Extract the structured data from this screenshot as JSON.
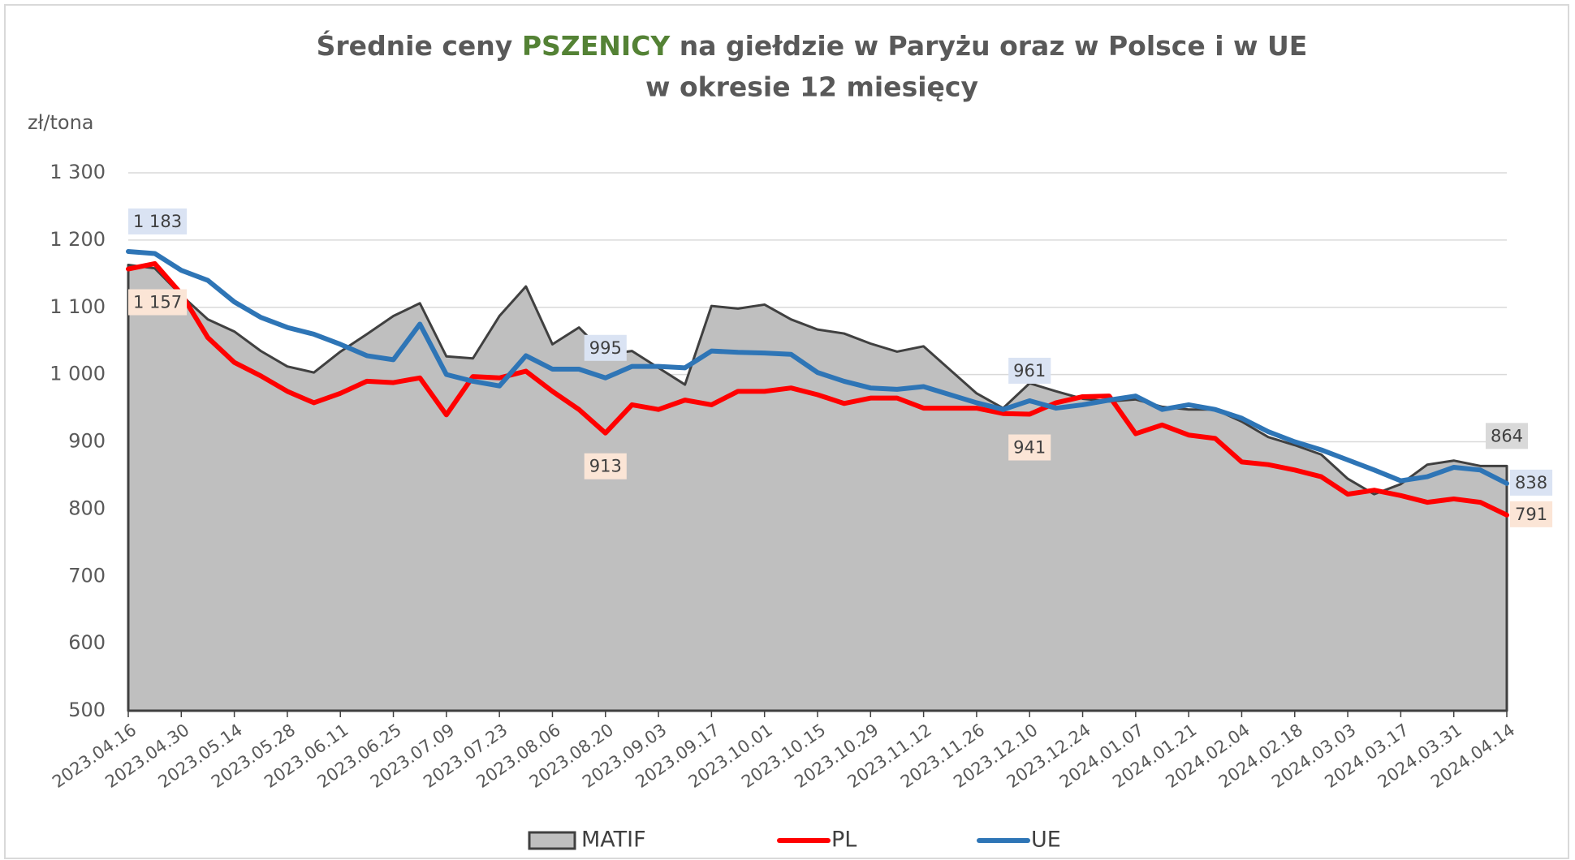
{
  "chart_data": {
    "type": "line",
    "title_parts": [
      "Średnie ceny",
      "PSZENICY",
      "na giełdzie w Paryżu oraz w Polsce i w UE",
      "w okresie 12 miesięcy"
    ],
    "title_highlight_color": "#548235",
    "y_label": "zł/tona",
    "categories": [
      "2023.04.16",
      null,
      "2023.04.30",
      null,
      "2023.05.14",
      null,
      "2023.05.28",
      null,
      "2023.06.11",
      null,
      "2023.06.25",
      null,
      "2023.07.09",
      null,
      "2023.07.23",
      null,
      "2023.08.06",
      null,
      "2023.08.20",
      null,
      "2023.09.03",
      null,
      "2023.09.17",
      null,
      "2023.10.01",
      null,
      "2023.10.15",
      null,
      "2023.10.29",
      null,
      "2023.11.12",
      null,
      "2023.11.26",
      null,
      "2023.12.10",
      null,
      "2023.12.24",
      null,
      "2024.01.07",
      null,
      "2024.01.21",
      null,
      "2024.02.04",
      null,
      "2024.02.18",
      null,
      "2024.03.03",
      null,
      "2024.03.17",
      null,
      "2024.03.31",
      null,
      "2024.04.14"
    ],
    "series": [
      {
        "name": "MATIF",
        "kind": "area",
        "color": "#bfbfbf",
        "line_color": "#404040",
        "values": [
          1163,
          1158,
          1118,
          1082,
          1064,
          1035,
          1012,
          1003,
          1034,
          1060,
          1087,
          1106,
          1027,
          1024,
          1087,
          1131,
          1045,
          1070,
          1030,
          1035,
          1010,
          985,
          1102,
          1098,
          1104,
          1082,
          1067,
          1061,
          1046,
          1034,
          1042,
          1007,
          972,
          950,
          987,
          975,
          964,
          960,
          963,
          952,
          948,
          948,
          930,
          907,
          895,
          881,
          845,
          822,
          837,
          866,
          872,
          864,
          864
        ],
        "value_labels": [
          null,
          null,
          null,
          null,
          null,
          null,
          null,
          null,
          null,
          null,
          null,
          null,
          null,
          null,
          null,
          null,
          null,
          null,
          null,
          null,
          null,
          null,
          null,
          null,
          null,
          null,
          null,
          null,
          null,
          null,
          null,
          null,
          null,
          null,
          null,
          null,
          null,
          null,
          null,
          null,
          null,
          null,
          null,
          null,
          null,
          null,
          null,
          null,
          null,
          null,
          null,
          null,
          "864"
        ]
      },
      {
        "name": "PL",
        "kind": "line",
        "color": "#ff0000",
        "values": [
          1157,
          1165,
          1120,
          1055,
          1018,
          998,
          975,
          958,
          972,
          990,
          988,
          995,
          940,
          997,
          995,
          1005,
          975,
          948,
          913,
          955,
          948,
          962,
          955,
          975,
          975,
          980,
          970,
          957,
          965,
          965,
          950,
          950,
          950,
          942,
          941,
          958,
          967,
          968,
          912,
          925,
          910,
          905,
          870,
          866,
          858,
          848,
          822,
          828,
          820,
          810,
          815,
          810,
          791
        ],
        "value_labels": [
          "1 157",
          null,
          null,
          null,
          null,
          null,
          null,
          null,
          null,
          null,
          null,
          null,
          null,
          null,
          null,
          null,
          null,
          null,
          "913",
          null,
          null,
          null,
          null,
          null,
          null,
          null,
          null,
          null,
          null,
          null,
          null,
          null,
          null,
          null,
          "941",
          null,
          null,
          null,
          null,
          null,
          null,
          null,
          null,
          null,
          null,
          null,
          null,
          null,
          null,
          null,
          null,
          null,
          "791"
        ]
      },
      {
        "name": "UE",
        "kind": "line",
        "color": "#2e75b6",
        "values": [
          1183,
          1180,
          1155,
          1140,
          1108,
          1085,
          1070,
          1060,
          1045,
          1028,
          1022,
          1075,
          1000,
          990,
          983,
          1028,
          1008,
          1008,
          995,
          1012,
          1012,
          1010,
          1035,
          1033,
          1032,
          1030,
          1003,
          990,
          980,
          978,
          982,
          970,
          958,
          948,
          961,
          950,
          955,
          962,
          968,
          948,
          955,
          948,
          935,
          915,
          900,
          888,
          873,
          858,
          842,
          848,
          862,
          858,
          838
        ],
        "value_labels": [
          "1 183",
          null,
          null,
          null,
          null,
          null,
          null,
          null,
          null,
          null,
          null,
          null,
          null,
          null,
          null,
          null,
          null,
          null,
          "995",
          null,
          null,
          null,
          null,
          null,
          null,
          null,
          null,
          null,
          null,
          null,
          null,
          null,
          null,
          null,
          "961",
          null,
          null,
          null,
          null,
          null,
          null,
          null,
          null,
          null,
          null,
          null,
          null,
          null,
          null,
          null,
          null,
          null,
          "838"
        ]
      }
    ],
    "ylim": [
      500,
      1300
    ],
    "yticks": [
      500,
      600,
      700,
      800,
      900,
      {
        "value": 1000,
        "label": "1 000"
      },
      {
        "value": 1100,
        "label": "1 100"
      },
      {
        "value": 1200,
        "label": "1 200"
      },
      {
        "value": 1300,
        "label": "1 300"
      }
    ],
    "grid": true,
    "legend": "bottom"
  }
}
